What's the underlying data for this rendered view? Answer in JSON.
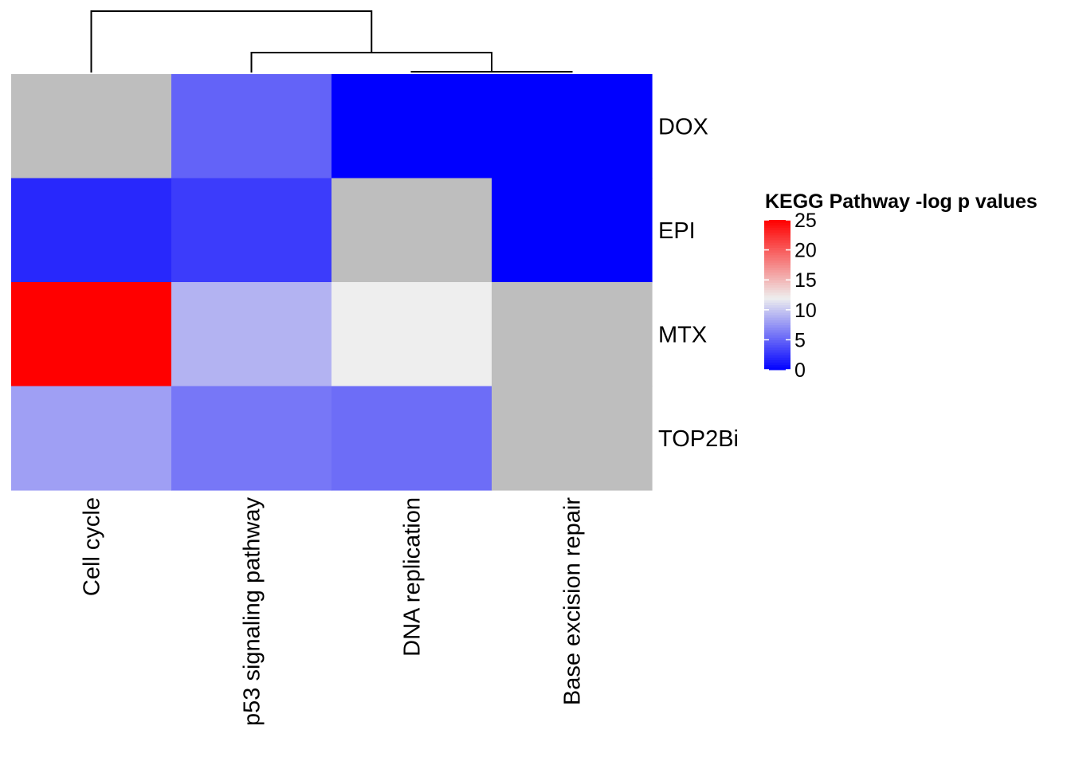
{
  "chart_data": {
    "type": "heatmap",
    "columns": [
      "Cell cycle",
      "p53 signaling pathway",
      "DNA replication",
      "Base excision repair"
    ],
    "rows": [
      "DOX",
      "EPI",
      "MTX",
      "TOP2Bi"
    ],
    "values": [
      [
        null,
        5,
        0,
        0
      ],
      [
        2,
        3,
        null,
        0
      ],
      [
        25,
        9,
        12,
        null
      ],
      [
        8,
        6,
        5.5,
        null
      ]
    ],
    "missing_color": "#BEBEBE",
    "color_scale": {
      "min": 0,
      "mid": 12,
      "max": 25,
      "low_color": "#0000FF",
      "mid_color": "#EEEEEE",
      "high_color": "#FF0000"
    },
    "legend": {
      "title": "KEGG Pathway -log p values",
      "ticks": [
        0,
        5,
        10,
        15,
        20,
        25
      ],
      "position": "right"
    },
    "column_dendrogram": true
  }
}
